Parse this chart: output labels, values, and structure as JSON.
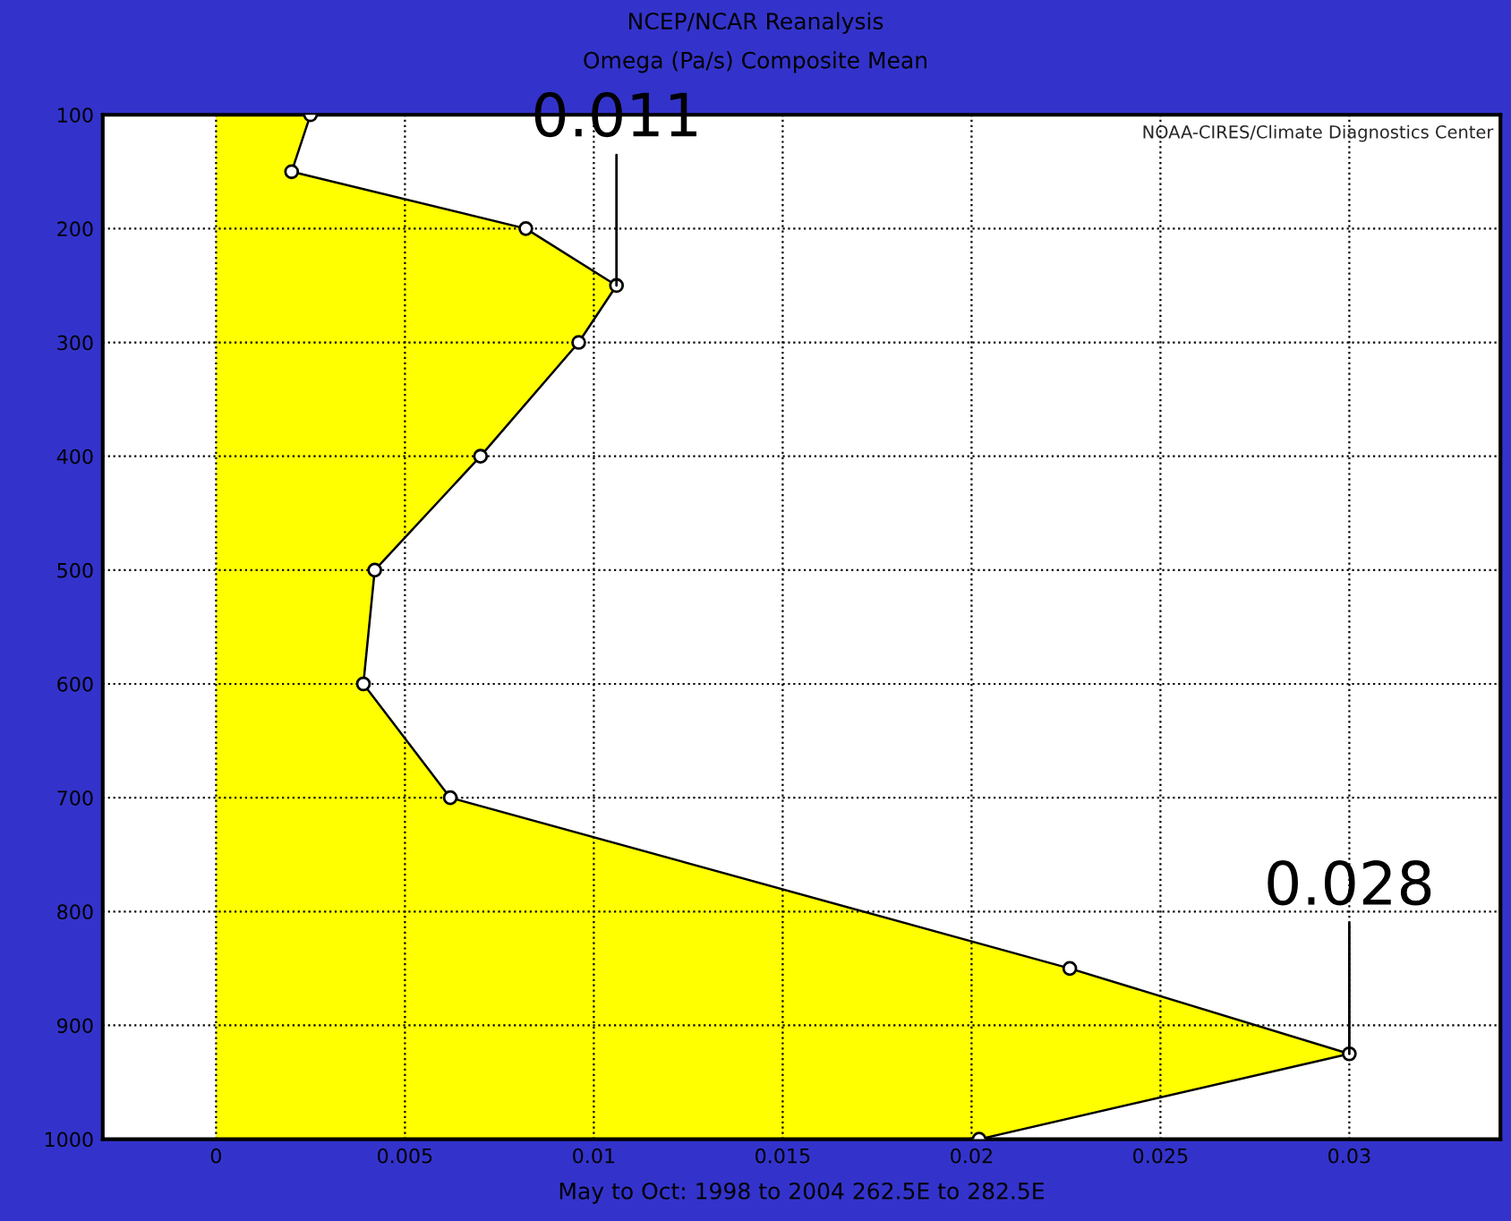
{
  "chart_data": {
    "type": "area",
    "orientation": "horizontal",
    "title": "NCEP/NCAR Reanalysis",
    "subtitle": "Omega (Pa/s) Composite Mean",
    "xlabel": "May to Oct: 1998 to 2004 262.5E to 282.5E",
    "x": [
      100,
      150,
      200,
      250,
      300,
      400,
      500,
      600,
      700,
      850,
      925,
      1000
    ],
    "series": [
      {
        "color": "#ffff00",
        "values": [
          0.0025,
          0.002,
          0.0082,
          0.0106,
          0.0096,
          0.007,
          0.0042,
          0.0039,
          0.0062,
          0.0226,
          0.03,
          0.0202
        ]
      }
    ],
    "xlim": [
      -0.003,
      0.034
    ],
    "xticks": [
      0,
      0.005,
      0.01,
      0.015,
      0.02,
      0.025,
      0.03
    ],
    "ylim": [
      1000,
      100
    ],
    "yticks": [
      100,
      200,
      300,
      400,
      500,
      600,
      700,
      800,
      900,
      1000
    ],
    "grid": true,
    "marker": "circle",
    "line_style": "solid",
    "annotations": [
      "NOAA-CIRES/Climate Diagnostics Center",
      {
        "text": "0.011",
        "x": 0.0106,
        "y": 250
      },
      {
        "text": "0.028",
        "x": 0.03,
        "y": 925
      }
    ]
  }
}
